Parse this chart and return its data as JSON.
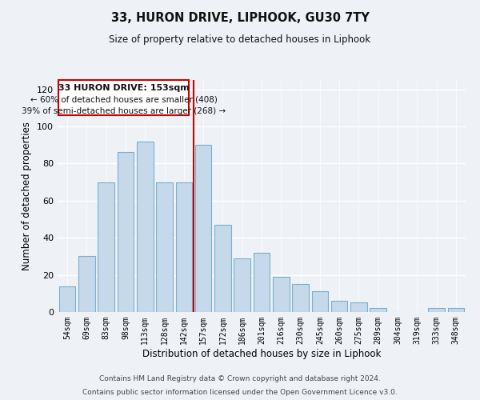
{
  "title": "33, HURON DRIVE, LIPHOOK, GU30 7TY",
  "subtitle": "Size of property relative to detached houses in Liphook",
  "xlabel": "Distribution of detached houses by size in Liphook",
  "ylabel": "Number of detached properties",
  "categories": [
    "54sqm",
    "69sqm",
    "83sqm",
    "98sqm",
    "113sqm",
    "128sqm",
    "142sqm",
    "157sqm",
    "172sqm",
    "186sqm",
    "201sqm",
    "216sqm",
    "230sqm",
    "245sqm",
    "260sqm",
    "275sqm",
    "289sqm",
    "304sqm",
    "319sqm",
    "333sqm",
    "348sqm"
  ],
  "values": [
    14,
    30,
    70,
    86,
    92,
    70,
    70,
    90,
    47,
    29,
    32,
    19,
    15,
    11,
    6,
    5,
    2,
    0,
    0,
    2,
    2
  ],
  "bar_color": "#c5d9ea",
  "bar_edge_color": "#7baecb",
  "annotation_title": "33 HURON DRIVE: 153sqm",
  "annotation_line1": "← 60% of detached houses are smaller (408)",
  "annotation_line2": "39% of semi-detached houses are larger (268) →",
  "annotation_box_color": "#ffffff",
  "annotation_box_edge_color": "#cc0000",
  "vline_color": "#cc0000",
  "vline_x": 6.5,
  "ylim": [
    0,
    125
  ],
  "yticks": [
    0,
    20,
    40,
    60,
    80,
    100,
    120
  ],
  "background_color": "#eef2f7",
  "grid_color": "#ffffff",
  "footer1": "Contains HM Land Registry data © Crown copyright and database right 2024.",
  "footer2": "Contains public sector information licensed under the Open Government Licence v3.0."
}
